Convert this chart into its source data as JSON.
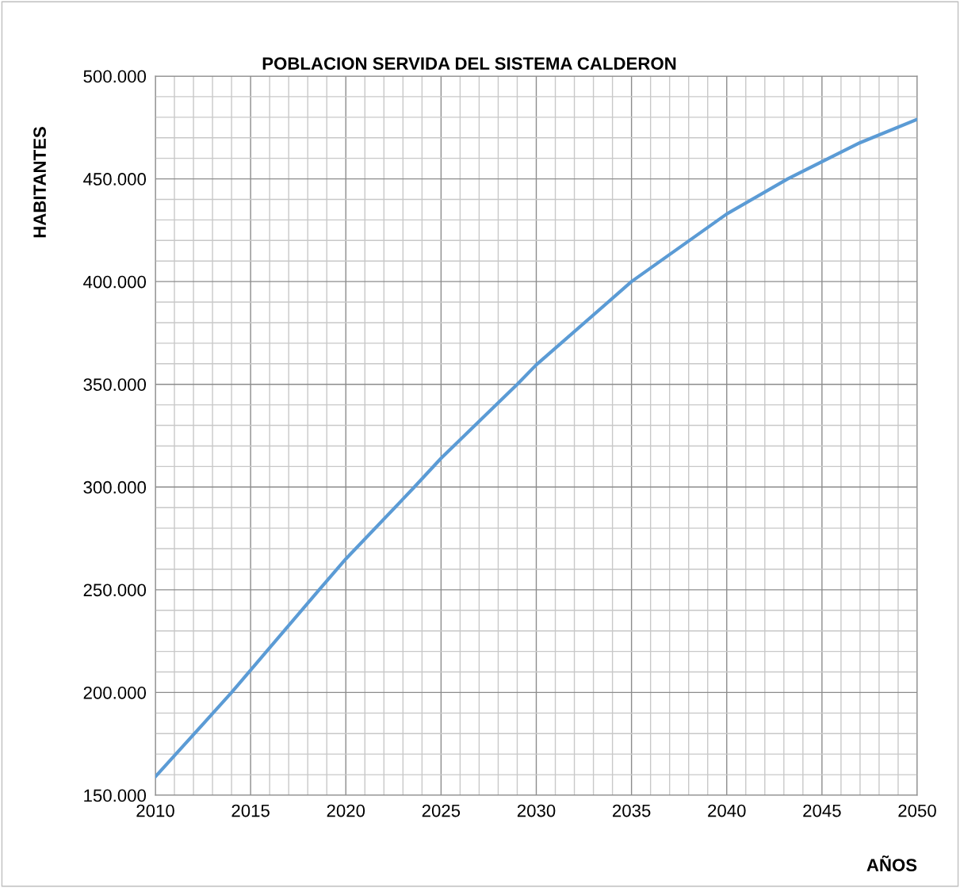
{
  "chart_data": {
    "type": "line",
    "title": "POBLACION SERVIDA DEL SISTEMA CALDERON",
    "xlabel": "AÑOS",
    "ylabel": "HABITANTES",
    "x": [
      2010,
      2014,
      2018.6,
      2020,
      2023.6,
      2025,
      2029,
      2030,
      2035,
      2040,
      2043.2,
      2047,
      2050
    ],
    "series": [
      {
        "color": "#5b9bd5",
        "values": [
          159000,
          200000,
          250000,
          265000,
          300000,
          314000,
          350000,
          359500,
          400000,
          432900,
          450000,
          467600,
          479000
        ]
      }
    ],
    "xlim": [
      2010,
      2050
    ],
    "xticks": [
      2010,
      2015,
      2020,
      2025,
      2030,
      2035,
      2040,
      2045,
      2050
    ],
    "ylim": [
      150000,
      500000
    ],
    "yticks": [
      {
        "value": 150000,
        "label": "150.000"
      },
      {
        "value": 200000,
        "label": "200.000"
      },
      {
        "value": 250000,
        "label": "250.000"
      },
      {
        "value": 300000,
        "label": "300.000"
      },
      {
        "value": 350000,
        "label": "350.000"
      },
      {
        "value": 400000,
        "label": "400.000"
      },
      {
        "value": 450000,
        "label": "450.000"
      },
      {
        "value": 500000,
        "label": "500.000"
      }
    ],
    "grid": true,
    "marker": "none",
    "line_style": "solid"
  }
}
